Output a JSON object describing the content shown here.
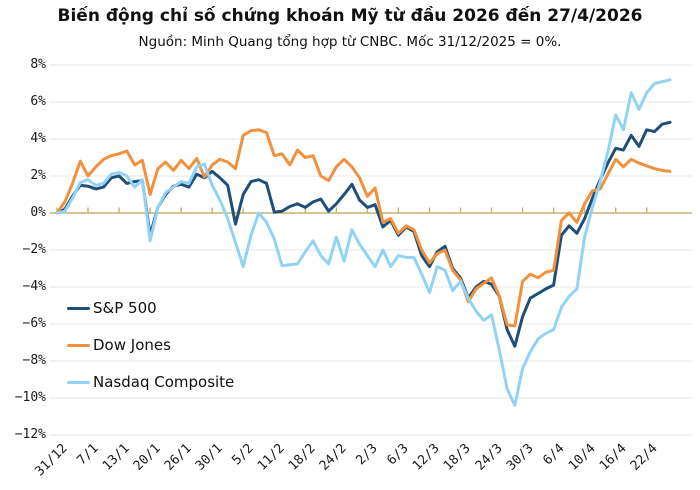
{
  "chart": {
    "title": "Biến động chỉ số chứng khoán Mỹ từ đầu 2026 đến 27/4/2026",
    "subtitle": "Nguồn: Minh Quang tổng hợp từ CNBC. Mốc 31/12/2025 = 0%."
  },
  "chart_data": {
    "type": "line",
    "title": "Biến động chỉ số chứng khoán Mỹ từ đầu 2026 đến 27/4/2026",
    "subtitle": "Nguồn: Minh Quang tổng hợp từ CNBC. Mốc 31/12/2025 = 0%.",
    "x_description": "Trading days from 31/12/2025 to 27/4/2026, one point per day, axis labels every 4 trading days",
    "x_tick_labels": [
      "31/12",
      "7/1",
      "13/1",
      "20/1",
      "26/1",
      "30/1",
      "5/2",
      "11/2",
      "18/2",
      "24/2",
      "2/3",
      "6/3",
      "12/3",
      "18/3",
      "24/3",
      "30/3",
      "6/4",
      "10/4",
      "16/4",
      "22/4"
    ],
    "x_label_every_n_points": 4,
    "y_unit": "%",
    "y_ticks": [
      8,
      6,
      4,
      2,
      0,
      -2,
      -4,
      -6,
      -8,
      -10,
      -12
    ],
    "ylim": [
      -12,
      8
    ],
    "grid": true,
    "baseline_value": 0,
    "legend_position": "left-middle",
    "colors": {
      "grid": "#e7e7e7",
      "zero_line": "#c3b273",
      "sp500": "#1f4e79",
      "dow": "#f1913d",
      "nasdaq": "#92d3f5"
    },
    "series": [
      {
        "name": "S&P 500",
        "color_key": "sp500",
        "values": [
          0,
          0.2,
          0.9,
          1.5,
          1.45,
          1.3,
          1.4,
          1.9,
          2.0,
          1.6,
          1.7,
          1.75,
          -1.2,
          0.3,
          1.0,
          1.45,
          1.55,
          1.4,
          2.1,
          1.9,
          2.25,
          1.9,
          1.5,
          -0.6,
          1.0,
          1.7,
          1.8,
          1.6,
          0.05,
          0.1,
          0.35,
          0.5,
          0.3,
          0.6,
          0.75,
          0.1,
          0.5,
          1.0,
          1.55,
          0.7,
          0.3,
          0.45,
          -0.75,
          -0.4,
          -1.2,
          -0.75,
          -1.0,
          -2.3,
          -2.9,
          -2.1,
          -1.8,
          -3.0,
          -3.5,
          -4.6,
          -4.0,
          -3.7,
          -3.85,
          -4.5,
          -6.3,
          -7.2,
          -5.6,
          -4.6,
          -4.35,
          -4.1,
          -3.9,
          -1.2,
          -0.7,
          -1.1,
          -0.3,
          0.8,
          1.8,
          2.7,
          3.5,
          3.4,
          4.2,
          3.6,
          4.5,
          4.4,
          4.8,
          4.9
        ]
      },
      {
        "name": "Dow Jones",
        "color_key": "dow",
        "values": [
          0,
          0.6,
          1.6,
          2.8,
          2.0,
          2.5,
          2.9,
          3.1,
          3.2,
          3.35,
          2.6,
          2.85,
          1.0,
          2.4,
          2.75,
          2.3,
          2.85,
          2.4,
          2.95,
          1.95,
          2.6,
          2.9,
          2.75,
          2.4,
          4.2,
          4.45,
          4.5,
          4.35,
          3.1,
          3.2,
          2.6,
          3.4,
          3.0,
          3.1,
          2.0,
          1.75,
          2.5,
          2.9,
          2.5,
          1.9,
          0.9,
          1.35,
          -0.5,
          -0.3,
          -1.1,
          -0.7,
          -0.9,
          -2.0,
          -2.7,
          -2.2,
          -2.0,
          -3.1,
          -3.6,
          -4.8,
          -4.1,
          -3.8,
          -3.5,
          -4.5,
          -6.05,
          -6.1,
          -3.7,
          -3.3,
          -3.5,
          -3.2,
          -3.1,
          -0.4,
          0.0,
          -0.5,
          0.5,
          1.2,
          1.3,
          2.1,
          2.9,
          2.5,
          2.9,
          2.7,
          2.55,
          2.4,
          2.3,
          2.25
        ]
      },
      {
        "name": "Nasdaq Composite",
        "color_key": "nasdaq",
        "values": [
          0,
          0.1,
          0.8,
          1.65,
          1.8,
          1.5,
          1.6,
          2.1,
          2.2,
          2.0,
          1.4,
          1.8,
          -1.5,
          0.3,
          1.1,
          1.4,
          1.7,
          1.6,
          2.5,
          2.65,
          1.5,
          0.7,
          -0.3,
          -1.6,
          -2.9,
          -1.2,
          0.0,
          -0.5,
          -1.4,
          -2.85,
          -2.8,
          -2.75,
          -2.1,
          -1.5,
          -2.3,
          -2.75,
          -1.3,
          -2.6,
          -0.9,
          -1.7,
          -2.3,
          -2.9,
          -2.0,
          -2.9,
          -2.3,
          -2.4,
          -2.4,
          -3.3,
          -4.3,
          -2.9,
          -3.1,
          -4.2,
          -3.7,
          -4.6,
          -5.3,
          -5.8,
          -5.5,
          -7.4,
          -9.5,
          -10.4,
          -8.4,
          -7.5,
          -6.8,
          -6.5,
          -6.3,
          -5.1,
          -4.5,
          -4.1,
          -1.3,
          0.3,
          1.7,
          3.3,
          5.3,
          4.5,
          6.5,
          5.6,
          6.5,
          7.0,
          7.1,
          7.2
        ]
      }
    ],
    "legend": [
      "S&P 500",
      "Dow Jones",
      "Nasdaq Composite"
    ]
  }
}
